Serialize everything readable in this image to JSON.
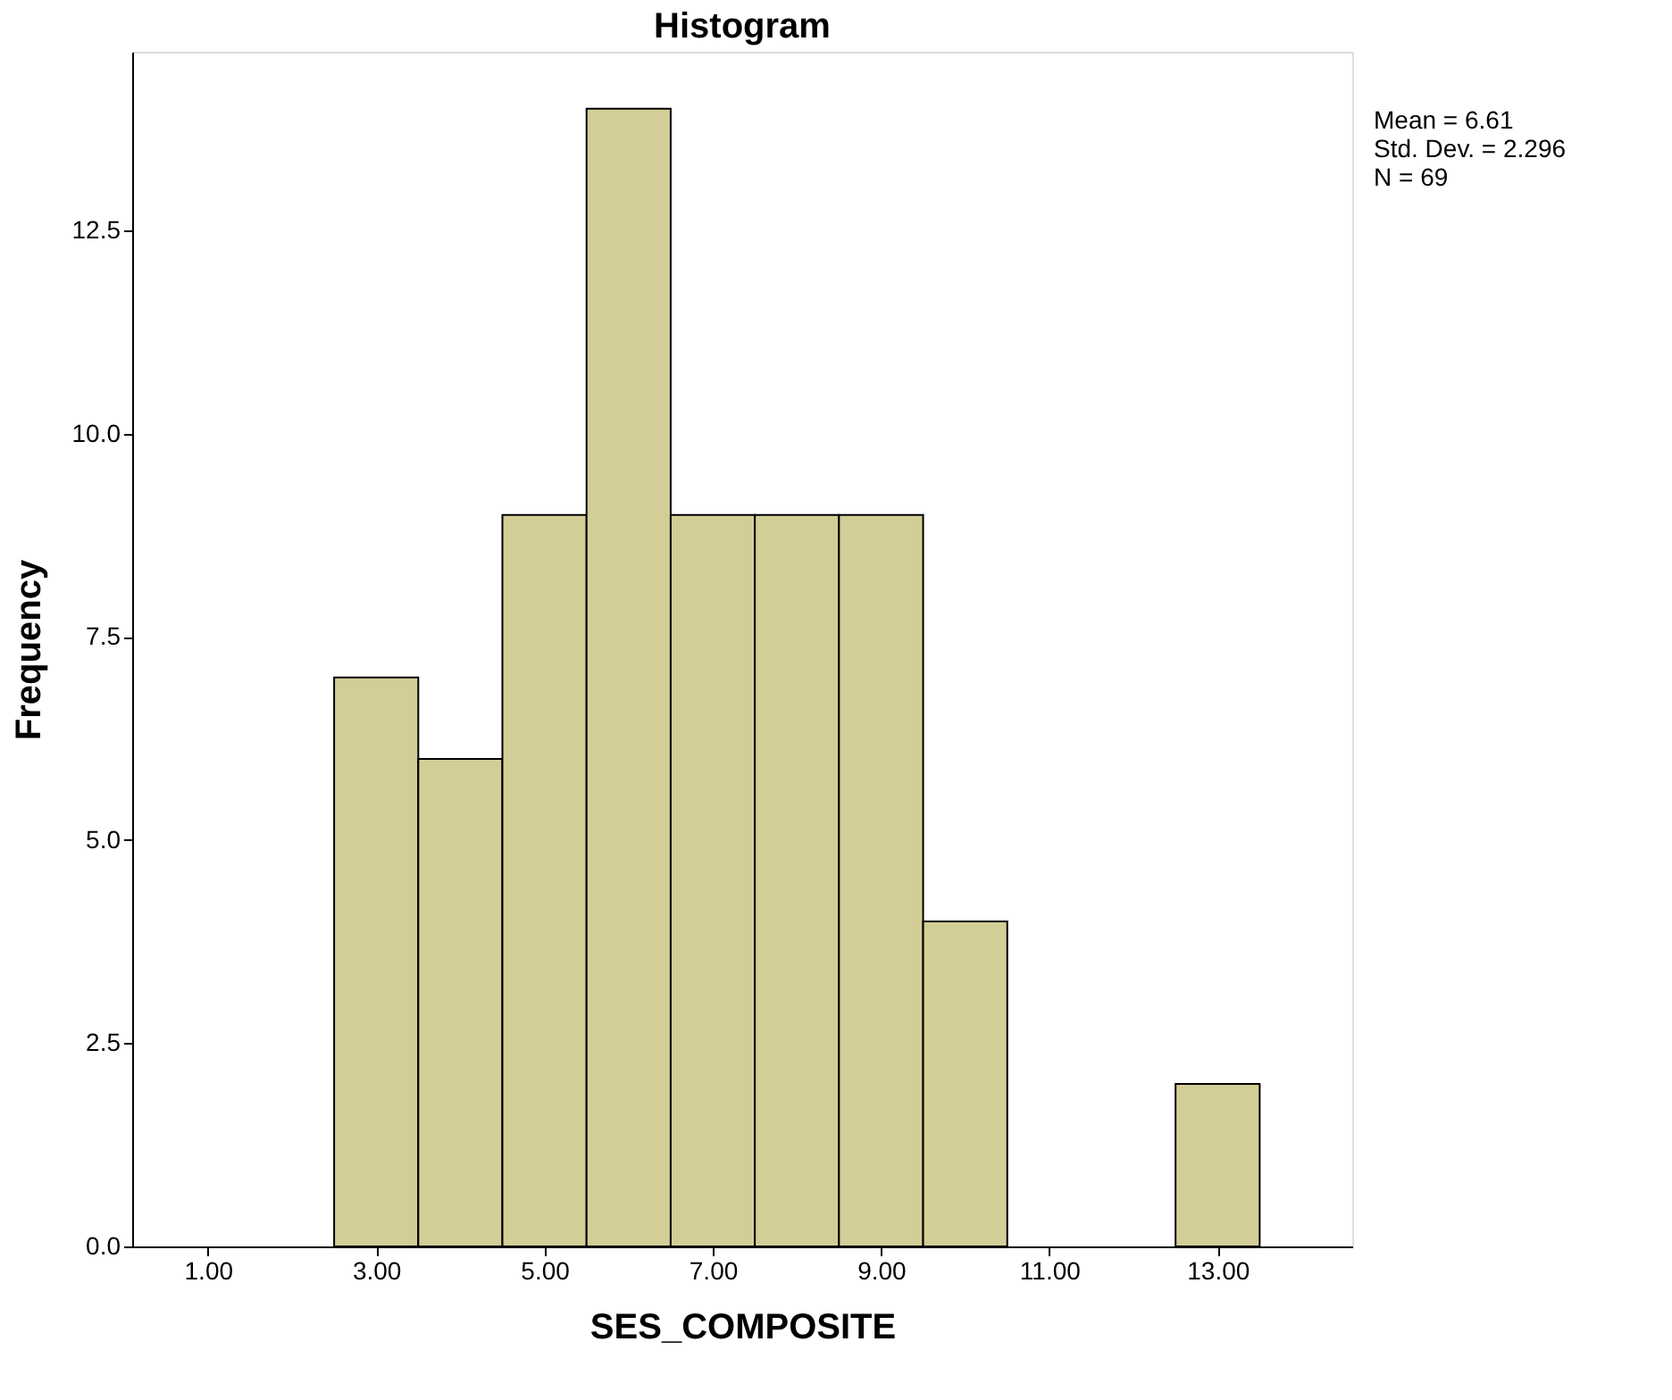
{
  "chart_data": {
    "type": "histogram",
    "title": "Histogram",
    "xlabel": "SES_COMPOSITE",
    "ylabel": "Frequency",
    "bins": [
      2.5,
      3.5,
      4.5,
      5.5,
      6.5,
      7.5,
      8.5,
      9.5,
      10.5,
      11.5,
      12.5,
      13.5
    ],
    "values": [
      7,
      6,
      9,
      14,
      9,
      9,
      9,
      4,
      0,
      0,
      2
    ],
    "color": "#d3ce97",
    "xlim": [
      0.1,
      14.6
    ],
    "xticks": [
      {
        "value": 1,
        "label": "1.00"
      },
      {
        "value": 3,
        "label": "3.00"
      },
      {
        "value": 5,
        "label": "5.00"
      },
      {
        "value": 7,
        "label": "7.00"
      },
      {
        "value": 9,
        "label": "9.00"
      },
      {
        "value": 11,
        "label": "11.00"
      },
      {
        "value": 13,
        "label": "13.00"
      }
    ],
    "ylim": [
      0,
      14.7
    ],
    "yticks": [
      {
        "value": 0,
        "label": "0.0"
      },
      2.5,
      {
        "value": 5,
        "label": "5.0"
      },
      7.5,
      {
        "value": 10,
        "label": "10.0"
      },
      12.5
    ],
    "grid": false,
    "annotations": [
      "Mean = 6.61",
      "Std. Dev. = 2.296",
      "N = 69"
    ]
  }
}
